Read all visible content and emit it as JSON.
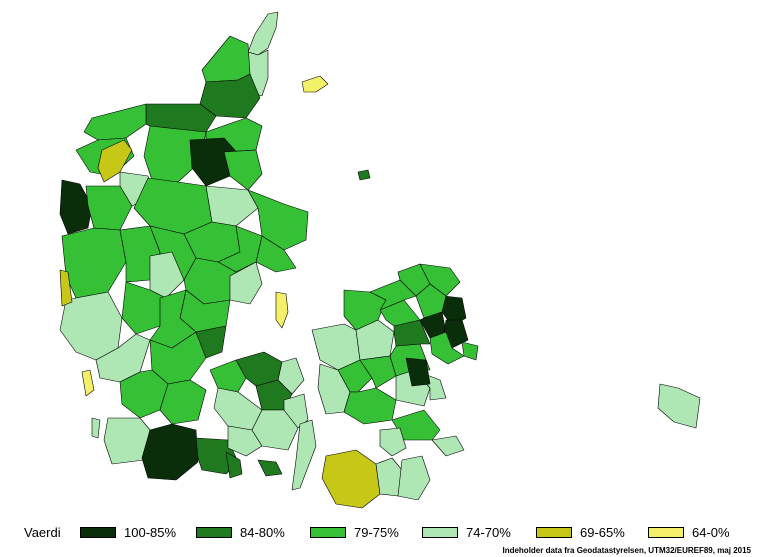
{
  "legend": {
    "title": "Vaerdi",
    "items": [
      {
        "label": "100-85%",
        "color": "#0a2e0a"
      },
      {
        "label": "84-80%",
        "color": "#1f7a1f"
      },
      {
        "label": "79-75%",
        "color": "#36c036"
      },
      {
        "label": "74-70%",
        "color": "#aee6b4"
      },
      {
        "label": "69-65%",
        "color": "#c7c718"
      },
      {
        "label": "64-0%",
        "color": "#f5f06a"
      }
    ]
  },
  "credit": "Indeholder data fra Geodatastyrelsen, UTM32/EUREF89, maj 2015"
}
